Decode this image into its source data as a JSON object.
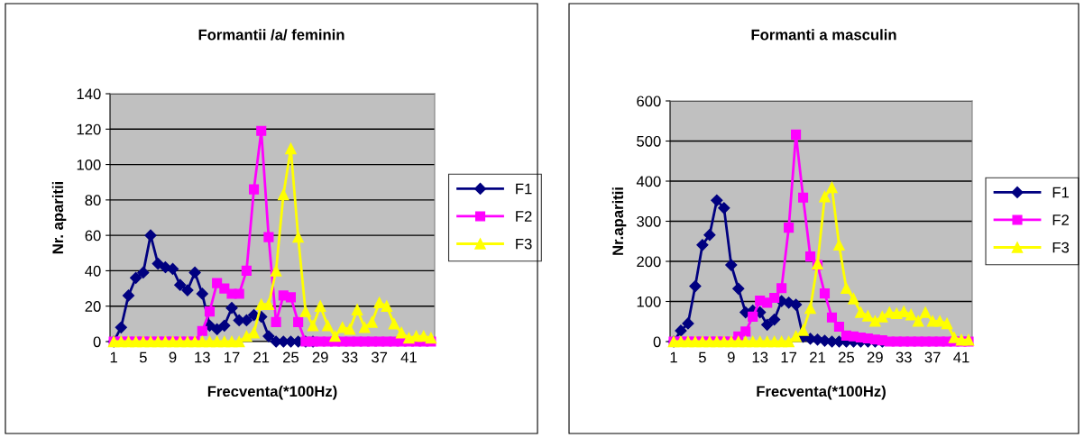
{
  "chart_data": [
    {
      "type": "line",
      "title": "Formantii /a/ feminin",
      "xlabel": "Frecventa(*100Hz)",
      "ylabel": "Nr. aparitii",
      "categories": [
        "1",
        null,
        null,
        null,
        "5",
        null,
        null,
        null,
        "9",
        null,
        null,
        null,
        "13",
        null,
        null,
        null,
        "17",
        null,
        null,
        null,
        "21",
        null,
        null,
        null,
        "25",
        null,
        null,
        null,
        "29",
        null,
        null,
        null,
        "33",
        null,
        null,
        null,
        "37",
        null,
        null,
        null,
        "41",
        null,
        null,
        null
      ],
      "ylim": [
        0,
        140
      ],
      "yticks": [
        0,
        20,
        40,
        60,
        80,
        100,
        120,
        140
      ],
      "grid": "y",
      "legend": "right",
      "series": [
        {
          "name": "F1",
          "color": "#000080",
          "marker": "diamond",
          "values": [
            0,
            8,
            26,
            36,
            39,
            60,
            44,
            42,
            41,
            32,
            29,
            39,
            27,
            9,
            7,
            9,
            19,
            12,
            12,
            15,
            14,
            3,
            0,
            0,
            0,
            0,
            0,
            0,
            null,
            null,
            null,
            null,
            null,
            null,
            null,
            null,
            null,
            null,
            null,
            null,
            null,
            null,
            null,
            null
          ]
        },
        {
          "name": "F2",
          "color": "#ff00ff",
          "marker": "square",
          "values": [
            0,
            0,
            0,
            0,
            0,
            0,
            0,
            0,
            0,
            0,
            0,
            0,
            6,
            17,
            33,
            30,
            27,
            27,
            40,
            86,
            119,
            59,
            11,
            26,
            25,
            11,
            0,
            0,
            0,
            0,
            0,
            0,
            0,
            0,
            0,
            0,
            0,
            0,
            0,
            0,
            0,
            0,
            0,
            0
          ]
        },
        {
          "name": "F3",
          "color": "#ffff00",
          "marker": "triangle",
          "values": [
            0,
            0,
            0,
            0,
            0,
            0,
            0,
            0,
            0,
            0,
            0,
            0,
            0,
            0,
            0,
            0,
            0,
            0,
            3,
            5,
            21,
            21,
            40,
            83,
            109,
            59,
            17,
            9,
            20,
            9,
            3,
            8,
            7,
            18,
            8,
            11,
            22,
            20,
            10,
            5,
            2,
            3,
            3,
            2
          ]
        }
      ]
    },
    {
      "type": "line",
      "title": "Formanti a masculin",
      "xlabel": "Frecventa(*100Hz)",
      "ylabel": "Nr.aparitii",
      "categories": [
        "1",
        null,
        null,
        null,
        "5",
        null,
        null,
        null,
        "9",
        null,
        null,
        null,
        "13",
        null,
        null,
        null,
        "17",
        null,
        null,
        null,
        "21",
        null,
        null,
        null,
        "25",
        null,
        null,
        null,
        "29",
        null,
        null,
        null,
        "33",
        null,
        null,
        null,
        "37",
        null,
        null,
        null,
        "41",
        null
      ],
      "ylim": [
        0,
        600
      ],
      "yticks": [
        0,
        100,
        200,
        300,
        400,
        500,
        600
      ],
      "grid": "y",
      "legend": "right",
      "series": [
        {
          "name": "F1",
          "color": "#000080",
          "marker": "diamond",
          "values": [
            0,
            27,
            45,
            138,
            241,
            266,
            352,
            333,
            191,
            132,
            73,
            77,
            73,
            42,
            55,
            101,
            97,
            92,
            12,
            7,
            5,
            2,
            0,
            0,
            0,
            0,
            0,
            0,
            0,
            0,
            null,
            null,
            null,
            null,
            null,
            null,
            null,
            null,
            null,
            null,
            null,
            null
          ]
        },
        {
          "name": "F2",
          "color": "#ff00ff",
          "marker": "square",
          "values": [
            0,
            0,
            0,
            0,
            0,
            0,
            0,
            0,
            0,
            13,
            25,
            62,
            102,
            97,
            109,
            133,
            284,
            516,
            359,
            212,
            191,
            120,
            60,
            37,
            15,
            13,
            10,
            8,
            5,
            3,
            0,
            0,
            0,
            0,
            0,
            0,
            0,
            0,
            0,
            0,
            0,
            0
          ]
        },
        {
          "name": "F3",
          "color": "#ffff00",
          "marker": "triangle",
          "values": [
            0,
            0,
            0,
            0,
            0,
            0,
            0,
            0,
            0,
            0,
            0,
            0,
            0,
            0,
            0,
            0,
            0,
            13,
            28,
            83,
            194,
            361,
            384,
            241,
            133,
            107,
            73,
            64,
            51,
            62,
            73,
            70,
            75,
            67,
            51,
            73,
            51,
            51,
            45,
            10,
            4,
            4
          ]
        }
      ]
    }
  ]
}
